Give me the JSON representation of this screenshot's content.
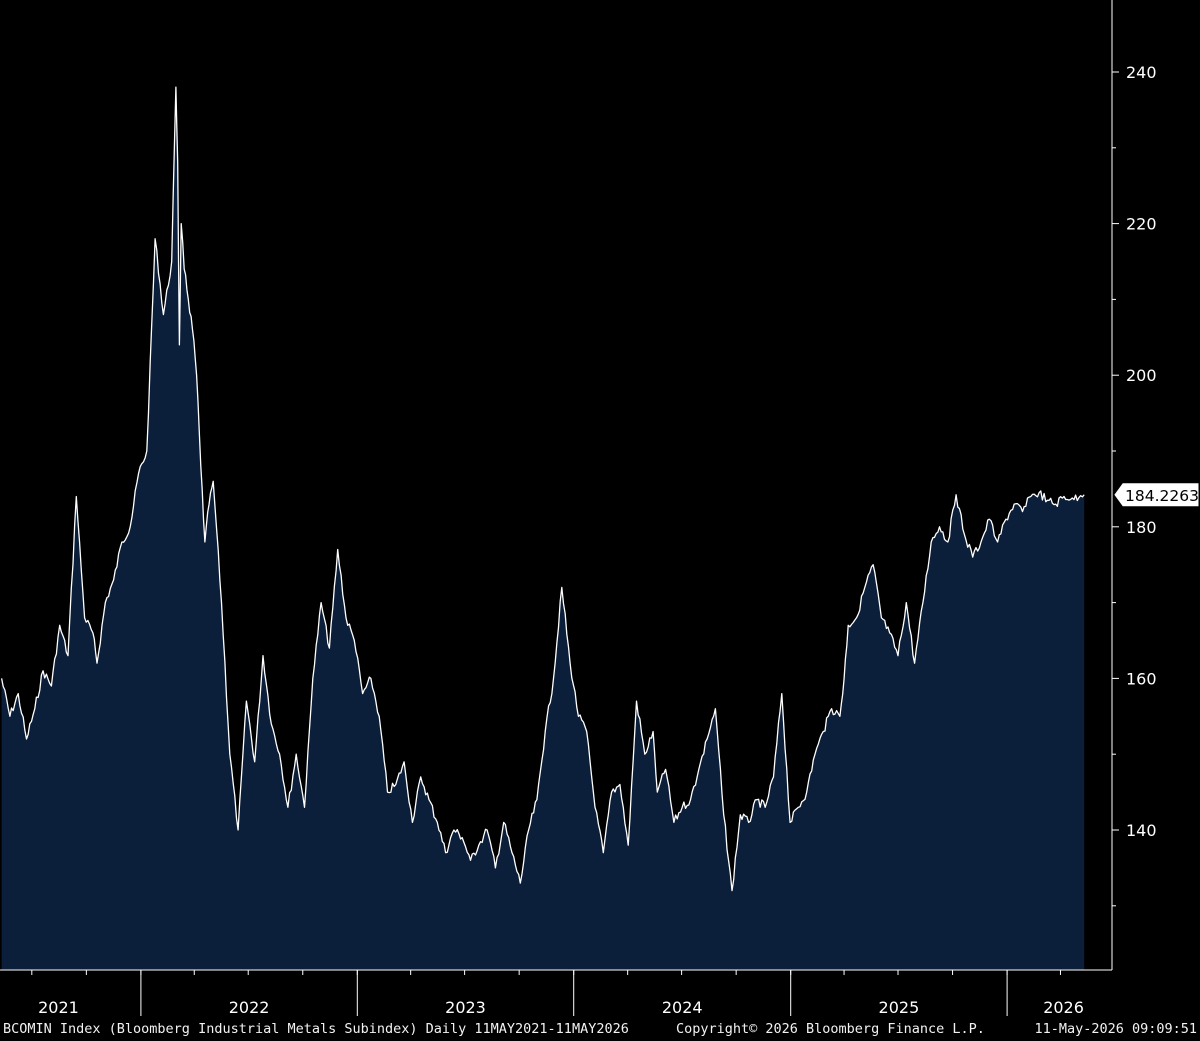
{
  "chart_data": {
    "type": "area",
    "title": "",
    "xlabel": "",
    "ylabel": "",
    "ylim": [
      122,
      250
    ],
    "yticks": [
      140,
      160,
      180,
      200,
      220,
      240
    ],
    "x_year_labels": [
      "2021",
      "2022",
      "2023",
      "2024",
      "2025",
      "2026"
    ],
    "last_value_label": "184.2263",
    "grid": false,
    "colors": {
      "fill": "#0b1e3a",
      "line": "#ffffff",
      "axis": "#ffffff",
      "background": "#000000"
    },
    "series": [
      {
        "x": [
          "2021-05-11",
          "2021-05-25",
          "2021-06-08",
          "2021-06-22",
          "2021-07-06",
          "2021-07-20",
          "2021-08-03",
          "2021-08-17",
          "2021-08-31",
          "2021-09-14",
          "2021-09-28",
          "2021-10-12",
          "2021-10-19",
          "2021-11-02",
          "2021-11-16",
          "2021-11-30",
          "2021-12-14",
          "2021-12-28",
          "2022-01-11",
          "2022-01-25",
          "2022-02-08",
          "2022-02-22",
          "2022-03-01",
          "2022-03-04",
          "2022-03-07",
          "2022-03-10",
          "2022-03-15",
          "2022-03-22",
          "2022-03-29",
          "2022-04-05",
          "2022-04-12",
          "2022-04-19",
          "2022-04-26",
          "2022-05-03",
          "2022-05-17",
          "2022-05-31",
          "2022-06-14",
          "2022-06-28",
          "2022-07-12",
          "2022-07-26",
          "2022-08-09",
          "2022-08-23",
          "2022-09-06",
          "2022-09-20",
          "2022-10-04",
          "2022-10-18",
          "2022-11-01",
          "2022-11-15",
          "2022-11-29",
          "2022-12-13",
          "2022-12-27",
          "2023-01-10",
          "2023-01-24",
          "2023-02-07",
          "2023-02-21",
          "2023-03-07",
          "2023-03-21",
          "2023-04-04",
          "2023-04-18",
          "2023-05-02",
          "2023-05-16",
          "2023-05-30",
          "2023-06-13",
          "2023-06-27",
          "2023-07-11",
          "2023-07-25",
          "2023-08-08",
          "2023-08-22",
          "2023-09-05",
          "2023-09-19",
          "2023-10-03",
          "2023-10-17",
          "2023-10-31",
          "2023-11-14",
          "2023-11-28",
          "2023-12-12",
          "2023-12-26",
          "2024-01-09",
          "2024-01-23",
          "2024-02-06",
          "2024-02-20",
          "2024-03-05",
          "2024-03-19",
          "2024-04-02",
          "2024-04-16",
          "2024-04-30",
          "2024-05-14",
          "2024-05-21",
          "2024-06-04",
          "2024-06-18",
          "2024-07-02",
          "2024-07-16",
          "2024-07-30",
          "2024-08-13",
          "2024-08-27",
          "2024-09-10",
          "2024-09-24",
          "2024-10-08",
          "2024-10-22",
          "2024-11-05",
          "2024-11-19",
          "2024-12-03",
          "2024-12-17",
          "2024-12-31",
          "2025-01-14",
          "2025-01-28",
          "2025-02-11",
          "2025-02-25",
          "2025-03-11",
          "2025-03-25",
          "2025-04-01",
          "2025-04-08",
          "2025-04-22",
          "2025-05-06",
          "2025-05-20",
          "2025-06-03",
          "2025-06-17",
          "2025-07-01",
          "2025-07-15",
          "2025-07-29",
          "2025-08-12",
          "2025-08-26",
          "2025-09-09",
          "2025-09-23",
          "2025-10-07",
          "2025-10-21",
          "2025-11-04",
          "2025-11-18",
          "2025-12-02",
          "2025-12-16",
          "2025-12-30",
          "2026-01-13",
          "2026-01-27",
          "2026-02-10",
          "2026-02-24",
          "2026-03-10",
          "2026-03-24",
          "2026-04-07",
          "2026-04-21",
          "2026-05-05",
          "2026-05-11"
        ],
        "values": [
          160,
          155,
          158,
          152,
          156,
          161,
          159,
          167,
          163,
          184,
          168,
          166,
          162,
          170,
          173,
          178,
          180,
          187,
          190,
          218,
          208,
          215,
          238,
          228,
          204,
          220,
          214,
          210,
          206,
          200,
          188,
          178,
          183,
          186,
          170,
          150,
          140,
          157,
          149,
          163,
          154,
          150,
          143,
          150,
          143,
          160,
          170,
          164,
          177,
          168,
          165,
          158,
          160,
          155,
          145,
          146,
          149,
          141,
          147,
          144,
          141,
          137,
          140,
          139,
          136,
          138,
          140,
          135,
          141,
          137,
          133,
          140,
          144,
          153,
          160,
          172,
          162,
          155,
          153,
          143,
          137,
          145,
          146,
          138,
          157,
          150,
          153,
          145,
          148,
          141,
          143,
          144,
          148,
          152,
          156,
          142,
          132,
          142,
          141,
          144,
          143,
          147,
          158,
          141,
          143,
          145,
          150,
          153,
          156,
          155,
          160,
          167,
          168,
          172,
          175,
          168,
          166,
          163,
          170,
          162,
          170,
          178,
          180,
          178,
          184.2263,
          179,
          176,
          178,
          181,
          178,
          181,
          183,
          182,
          184,
          184.5,
          183.5,
          183,
          184,
          183.8,
          184.1,
          184.2263
        ]
      }
    ]
  },
  "footer": {
    "left": "BCOMIN Index (Bloomberg Industrial Metals Subindex) Daily 11MAY2021-11MAY2026",
    "middle": "Copyright© 2026 Bloomberg Finance L.P.",
    "right": "11-May-2026 09:09:51"
  }
}
